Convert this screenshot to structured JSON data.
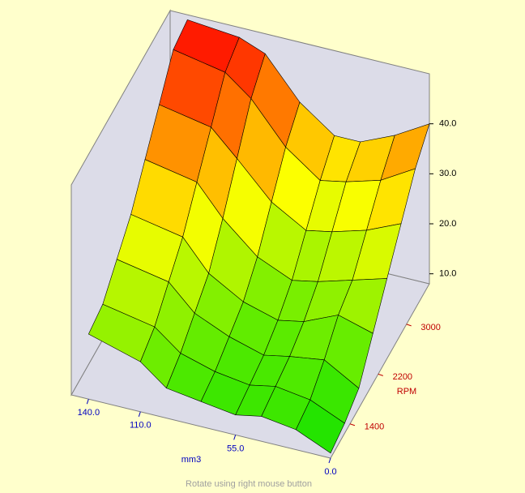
{
  "chart_data": {
    "type": "surface3d",
    "x_label": "mm3",
    "y_label": "RPM",
    "x": [
      0,
      20,
      40,
      55,
      75,
      95,
      110,
      140
    ],
    "y": [
      850,
      1250,
      1650,
      2050,
      2450,
      2850,
      3250,
      3650
    ],
    "z": [
      [
        9,
        12,
        13,
        12,
        13,
        14,
        18,
        21
      ],
      [
        10,
        13,
        14,
        13,
        14,
        16,
        20,
        22
      ],
      [
        12,
        16,
        15,
        14,
        16,
        19,
        24,
        26
      ],
      [
        18,
        20,
        17,
        16,
        18,
        22,
        28,
        30
      ],
      [
        24,
        22,
        20,
        19,
        22,
        28,
        34,
        36
      ],
      [
        30,
        27,
        25,
        24,
        28,
        35,
        40,
        42
      ],
      [
        36,
        32,
        30,
        29,
        34,
        42,
        46,
        48
      ],
      [
        40,
        36,
        33,
        33,
        38,
        46,
        48,
        49
      ]
    ],
    "xlim": [
      0,
      150
    ],
    "ylim": [
      850,
      3650
    ],
    "zlim": [
      8,
      50
    ],
    "xticks": [
      {
        "value": 140,
        "label": "140.0"
      },
      {
        "value": 110,
        "label": "110.0"
      },
      {
        "value": 55,
        "label": "55.0"
      },
      {
        "value": 0,
        "label": "0.0"
      }
    ],
    "yticks": [
      1400,
      2200,
      3000
    ],
    "zticks": [
      {
        "value": 10,
        "label": "10.0"
      },
      {
        "value": 20,
        "label": "20.0"
      },
      {
        "value": 30,
        "label": "30.0"
      },
      {
        "value": 40,
        "label": "40.0"
      }
    ],
    "colorscale": [
      "#00e000",
      "#ffff00",
      "#ff0000"
    ]
  },
  "status_text": "Rotate using right mouse button"
}
